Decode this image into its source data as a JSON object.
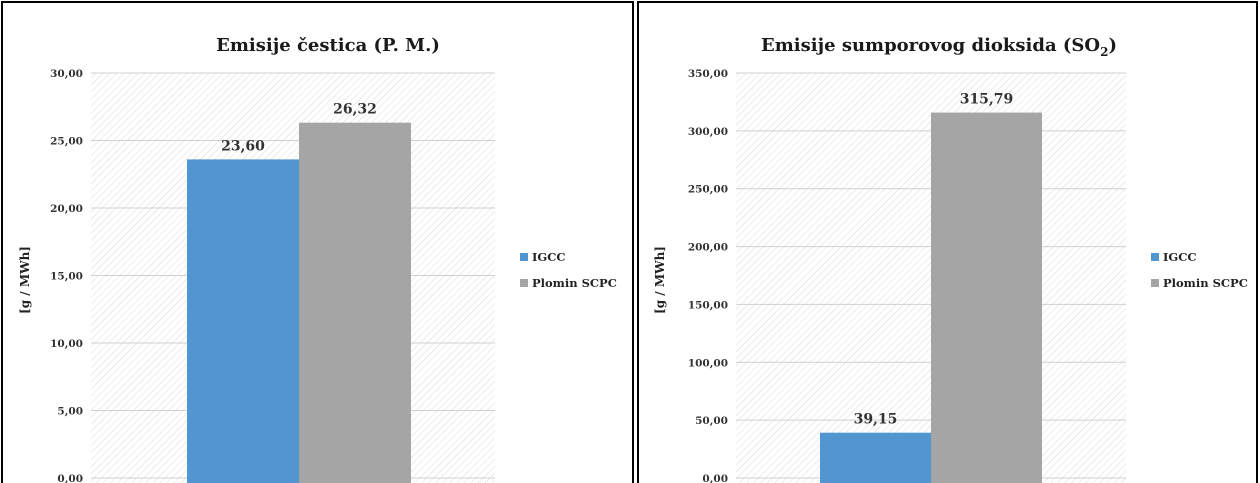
{
  "chart_data": [
    {
      "type": "bar",
      "title": "Emisije čestica (P. M.)",
      "ylabel": "[g / MWh]",
      "xlabel": "",
      "ylim": [
        0,
        30
      ],
      "yticks": [
        "0,00",
        "5,00",
        "10,00",
        "15,00",
        "20,00",
        "25,00",
        "30,00"
      ],
      "grid": true,
      "legend_position": "right",
      "series": [
        {
          "name": "IGCC",
          "values": [
            23.6
          ],
          "label": "23,60",
          "color": "#5195d1"
        },
        {
          "name": "Plomin SCPC",
          "values": [
            26.32
          ],
          "label": "26,32",
          "color": "#a5a5a5"
        }
      ]
    },
    {
      "type": "bar",
      "title": "Emisije sumporovog dioksida (SO",
      "title_sub": "2",
      "title_end": ")",
      "ylabel": "[g / MWh]",
      "xlabel": "",
      "ylim": [
        0,
        350
      ],
      "yticks": [
        "0,00",
        "50,00",
        "100,00",
        "150,00",
        "200,00",
        "250,00",
        "300,00",
        "350,00"
      ],
      "grid": true,
      "legend_position": "right",
      "series": [
        {
          "name": "IGCC",
          "values": [
            39.15
          ],
          "label": "39,15",
          "color": "#5195d1"
        },
        {
          "name": "Plomin SCPC",
          "values": [
            315.79
          ],
          "label": "315,79",
          "color": "#a5a5a5"
        }
      ]
    }
  ]
}
